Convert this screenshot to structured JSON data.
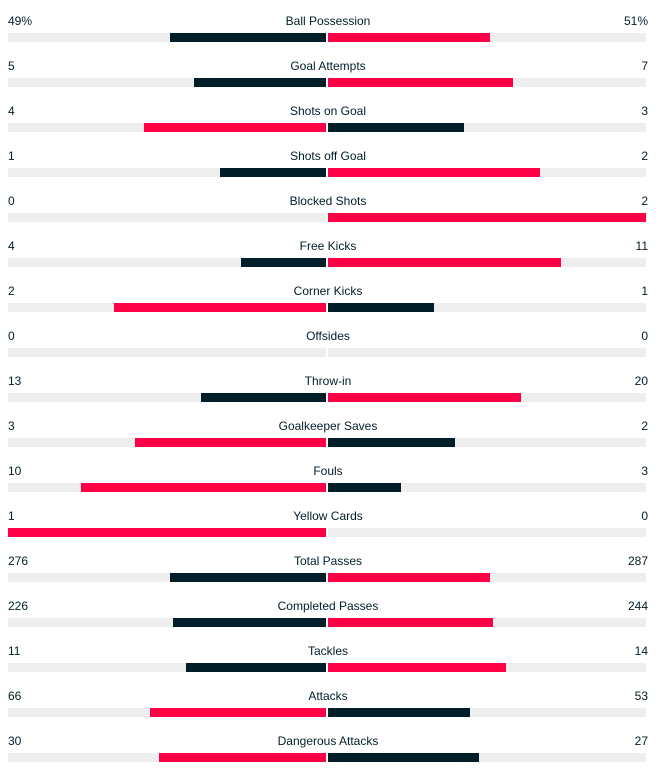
{
  "colors": {
    "leader": "#ff0046",
    "trailer": "#001e28",
    "track": "#eeeeee"
  },
  "stats": [
    {
      "name": "Ball Possession",
      "home": "49%",
      "away": "51%",
      "home_share": 0.49,
      "away_share": 0.51
    },
    {
      "name": "Goal Attempts",
      "home": "5",
      "away": "7",
      "home_share": 0.4167,
      "away_share": 0.5833
    },
    {
      "name": "Shots on Goal",
      "home": "4",
      "away": "3",
      "home_share": 0.5714,
      "away_share": 0.4286
    },
    {
      "name": "Shots off Goal",
      "home": "1",
      "away": "2",
      "home_share": 0.3333,
      "away_share": 0.6667
    },
    {
      "name": "Blocked Shots",
      "home": "0",
      "away": "2",
      "home_share": 0.0,
      "away_share": 1.0
    },
    {
      "name": "Free Kicks",
      "home": "4",
      "away": "11",
      "home_share": 0.2667,
      "away_share": 0.7333
    },
    {
      "name": "Corner Kicks",
      "home": "2",
      "away": "1",
      "home_share": 0.6667,
      "away_share": 0.3333
    },
    {
      "name": "Offsides",
      "home": "0",
      "away": "0",
      "home_share": 0.0,
      "away_share": 0.0
    },
    {
      "name": "Throw-in",
      "home": "13",
      "away": "20",
      "home_share": 0.3939,
      "away_share": 0.6061
    },
    {
      "name": "Goalkeeper Saves",
      "home": "3",
      "away": "2",
      "home_share": 0.6,
      "away_share": 0.4
    },
    {
      "name": "Fouls",
      "home": "10",
      "away": "3",
      "home_share": 0.7692,
      "away_share": 0.2308
    },
    {
      "name": "Yellow Cards",
      "home": "1",
      "away": "0",
      "home_share": 1.0,
      "away_share": 0.0
    },
    {
      "name": "Total Passes",
      "home": "276",
      "away": "287",
      "home_share": 0.4902,
      "away_share": 0.5098
    },
    {
      "name": "Completed Passes",
      "home": "226",
      "away": "244",
      "home_share": 0.4809,
      "away_share": 0.5191
    },
    {
      "name": "Tackles",
      "home": "11",
      "away": "14",
      "home_share": 0.44,
      "away_share": 0.56
    },
    {
      "name": "Attacks",
      "home": "66",
      "away": "53",
      "home_share": 0.5546,
      "away_share": 0.4454
    },
    {
      "name": "Dangerous Attacks",
      "home": "30",
      "away": "27",
      "home_share": 0.5263,
      "away_share": 0.4737
    }
  ]
}
